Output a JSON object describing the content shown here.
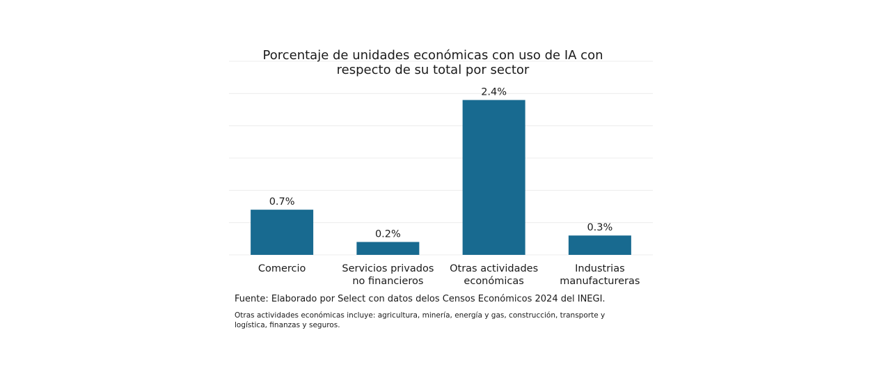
{
  "chart_data": {
    "type": "bar",
    "title": [
      "Porcentaje de unidades económicas con uso de IA con",
      "respecto de su total por sector"
    ],
    "categories": [
      [
        "Comercio"
      ],
      [
        "Servicios privados",
        "no financieros"
      ],
      [
        "Otras actividades",
        "económicas"
      ],
      [
        "Industrias",
        "manufactureras"
      ]
    ],
    "values": [
      0.7,
      0.2,
      2.4,
      0.3
    ],
    "value_labels": [
      "0.7%",
      "0.2%",
      "2.4%",
      "0.3%"
    ],
    "ylim": [
      0,
      3.0
    ],
    "grid": true,
    "bar_color": "#186a90",
    "grid_color": "#ececec",
    "xlabel": "",
    "ylabel": ""
  },
  "footer": {
    "source": "Fuente: Elaborado por Select con datos delos Censos Económicos 2024 del INEGI.",
    "note": "Otras actividades económicas incluye: agricultura, minería, energía y gas, construcción, transporte y logística, finanzas y seguros."
  }
}
